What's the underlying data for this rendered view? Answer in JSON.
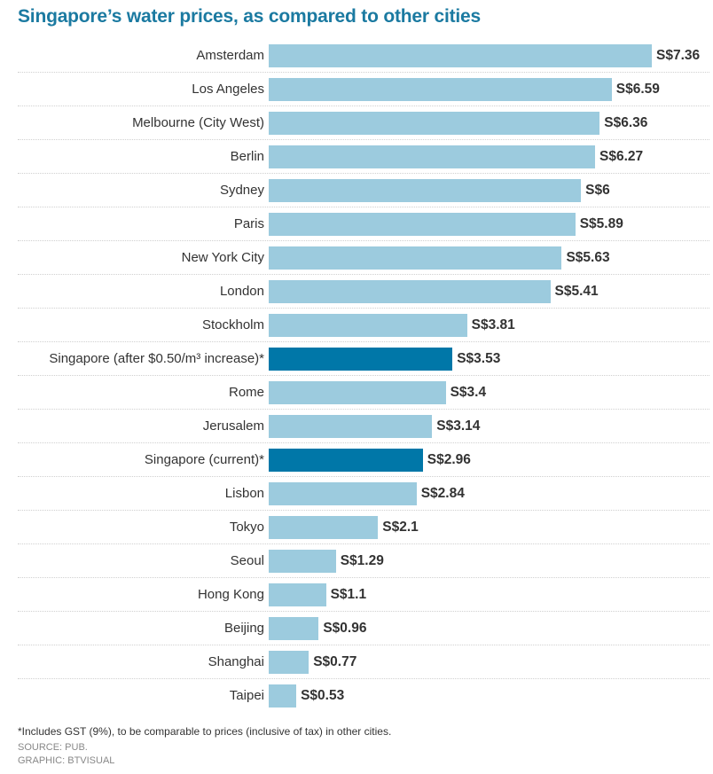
{
  "chart_data": {
    "type": "bar",
    "orientation": "horizontal",
    "title": "Singapore’s water prices, as compared to other cities",
    "xlabel": "",
    "ylabel": "",
    "xlim": [
      0,
      7.36
    ],
    "grid": false,
    "value_prefix": "S$",
    "categories": [
      "Amsterdam",
      "Los Angeles",
      "Melbourne (City West)",
      "Berlin",
      "Sydney",
      "Paris",
      "New York City",
      "London",
      "Stockholm",
      "Singapore (after $0.50/m³ increase)*",
      "Rome",
      "Jerusalem",
      "Singapore (current)*",
      "Lisbon",
      "Tokyo",
      "Seoul",
      "Hong Kong",
      "Beijing",
      "Shanghai",
      "Taipei"
    ],
    "values": [
      7.36,
      6.59,
      6.36,
      6.27,
      6,
      5.89,
      5.63,
      5.41,
      3.81,
      3.53,
      3.4,
      3.14,
      2.96,
      2.84,
      2.1,
      1.29,
      1.1,
      0.96,
      0.77,
      0.53
    ],
    "value_labels": [
      "S$7.36",
      "S$6.59",
      "S$6.36",
      "S$6.27",
      "S$6",
      "S$5.89",
      "S$5.63",
      "S$5.41",
      "S$3.81",
      "S$3.53",
      "S$3.4",
      "S$3.14",
      "S$2.96",
      "S$2.84",
      "S$2.1",
      "S$1.29",
      "S$1.1",
      "S$0.96",
      "S$0.77",
      "S$0.53"
    ],
    "highlighted": [
      9,
      12
    ],
    "colors": {
      "default": "#9ccbde",
      "highlight": "#0077a8",
      "title": "#1b7aa1"
    }
  },
  "footnote": "*Includes GST (9%), to be comparable to prices (inclusive of tax) in other cities.",
  "source": "SOURCE: PUB.",
  "graphic": "GRAPHIC: BTVISUAL"
}
